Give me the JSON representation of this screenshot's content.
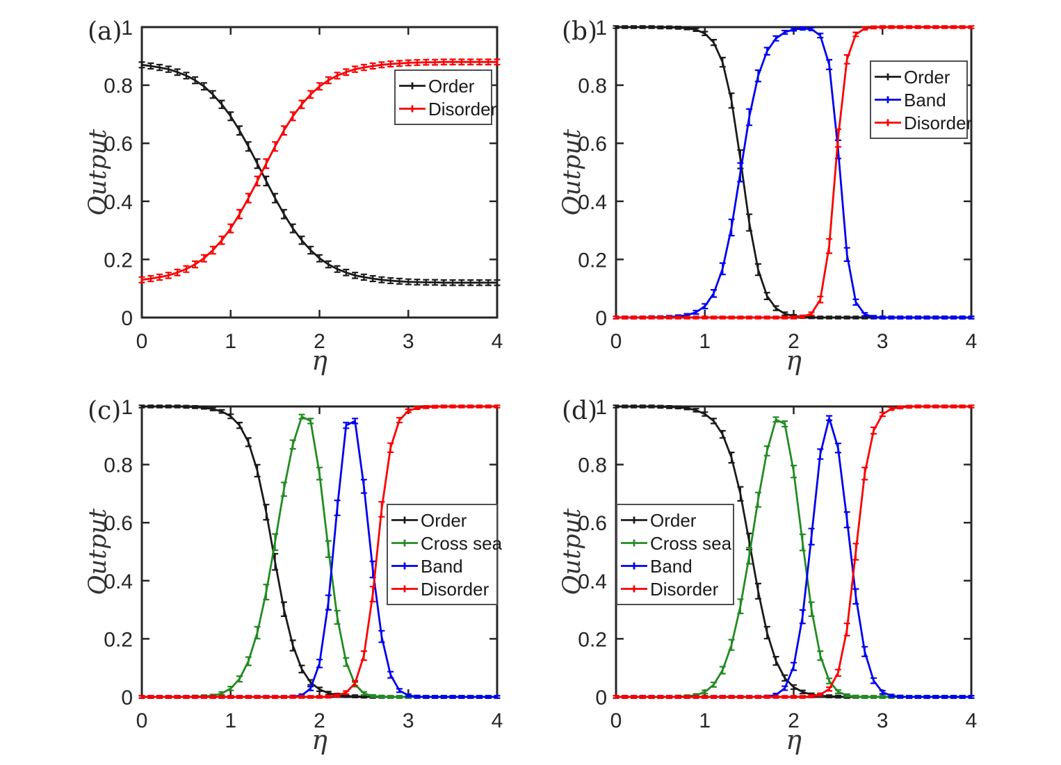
{
  "page": {
    "background": "#ffffff"
  },
  "chart_data": {
    "type": "line",
    "description": "2x2 grid of errorbar line plots: phase classification output vs noise eta",
    "shared": {
      "xlabel": "η",
      "ylabel": "Output",
      "xlim": [
        0,
        4
      ],
      "ylim": [
        0,
        1
      ],
      "xticks": [
        0,
        1,
        2,
        3,
        4
      ],
      "xtick_labels": [
        "0",
        "1",
        "2",
        "3",
        "4"
      ],
      "yticks": [
        0,
        0.2,
        0.4,
        0.6,
        0.8,
        1
      ],
      "ytick_labels": [
        "0",
        "0.2",
        "0.4",
        "0.6",
        "0.8",
        "1"
      ],
      "grid": false
    },
    "colors": {
      "order": "#1a1a1a",
      "cross_sea": "#228B22",
      "band": "#0000f0",
      "disorder": "#fa0000"
    },
    "panels": [
      {
        "id": "a",
        "panel_label": "(a)",
        "legend": {
          "position": "top-right",
          "items": [
            "Order",
            "Disorder"
          ]
        },
        "error_bar_halfwidth": {
          "min": 0.004,
          "max": 0.016
        },
        "x": [
          0,
          0.1,
          0.2,
          0.3,
          0.4,
          0.5,
          0.6,
          0.7,
          0.8,
          0.9,
          1,
          1.1,
          1.2,
          1.3,
          1.4,
          1.5,
          1.6,
          1.7,
          1.8,
          1.9,
          2,
          2.1,
          2.2,
          2.3,
          2.4,
          2.5,
          2.6,
          2.7,
          2.8,
          2.9,
          3,
          3.1,
          3.2,
          3.3,
          3.4,
          3.5,
          3.6,
          3.7,
          3.8,
          3.9,
          4
        ],
        "series": [
          {
            "name": "Order",
            "color": "#1a1a1a",
            "y": [
              0.87,
              0.866,
              0.861,
              0.855,
              0.845,
              0.833,
              0.817,
              0.796,
              0.768,
              0.734,
              0.693,
              0.644,
              0.589,
              0.53,
              0.47,
              0.411,
              0.356,
              0.307,
              0.266,
              0.232,
              0.204,
              0.183,
              0.167,
              0.155,
              0.145,
              0.139,
              0.134,
              0.13,
              0.127,
              0.125,
              0.123,
              0.122,
              0.121,
              0.121,
              0.12,
              0.12,
              0.12,
              0.12,
              0.12,
              0.12,
              0.12
            ]
          },
          {
            "name": "Disorder",
            "color": "#fa0000",
            "y": [
              0.13,
              0.134,
              0.139,
              0.145,
              0.155,
              0.167,
              0.183,
              0.204,
              0.232,
              0.266,
              0.307,
              0.356,
              0.411,
              0.47,
              0.53,
              0.589,
              0.644,
              0.693,
              0.734,
              0.768,
              0.796,
              0.817,
              0.833,
              0.845,
              0.855,
              0.861,
              0.866,
              0.87,
              0.873,
              0.875,
              0.877,
              0.878,
              0.879,
              0.879,
              0.88,
              0.88,
              0.88,
              0.88,
              0.88,
              0.88,
              0.88
            ]
          }
        ]
      },
      {
        "id": "b",
        "panel_label": "(b)",
        "legend": {
          "position": "top-right",
          "items": [
            "Order",
            "Band",
            "Disorder"
          ]
        },
        "error_bar_halfwidth": {
          "min": 0.004,
          "max": 0.032
        },
        "x": [
          0,
          0.1,
          0.2,
          0.3,
          0.4,
          0.5,
          0.6,
          0.7,
          0.8,
          0.9,
          1,
          1.1,
          1.2,
          1.3,
          1.4,
          1.5,
          1.6,
          1.7,
          1.8,
          1.9,
          2,
          2.1,
          2.2,
          2.3,
          2.4,
          2.5,
          2.6,
          2.7,
          2.8,
          2.9,
          3,
          3.1,
          3.2,
          3.3,
          3.4,
          3.5,
          3.6,
          3.7,
          3.8,
          3.9,
          4
        ],
        "series": [
          {
            "name": "Order",
            "color": "#1a1a1a",
            "y": [
              1,
              1,
              1,
              1,
              1,
              0.999,
              0.999,
              0.998,
              0.996,
              0.991,
              0.978,
              0.947,
              0.879,
              0.747,
              0.545,
              0.327,
              0.165,
              0.074,
              0.032,
              0.013,
              0.005,
              0.002,
              0.001,
              0,
              0,
              0,
              0,
              0,
              0,
              0,
              0,
              0,
              0,
              0,
              0,
              0,
              0,
              0,
              0,
              0,
              0
            ]
          },
          {
            "name": "Band",
            "color": "#0000f0",
            "y": [
              0,
              0,
              0,
              0,
              0.001,
              0.001,
              0.002,
              0.004,
              0.008,
              0.018,
              0.039,
              0.083,
              0.168,
              0.31,
              0.5,
              0.69,
              0.832,
              0.917,
              0.961,
              0.982,
              0.992,
              0.995,
              0.993,
              0.971,
              0.871,
              0.579,
              0.217,
              0.053,
              0.011,
              0.002,
              0,
              0,
              0,
              0,
              0,
              0,
              0,
              0,
              0,
              0,
              0
            ]
          },
          {
            "name": "Disorder",
            "color": "#fa0000",
            "y": [
              0,
              0,
              0,
              0,
              0,
              0,
              0,
              0,
              0,
              0,
              0,
              0,
              0,
              0,
              0,
              0,
              0,
              0,
              0,
              0,
              0,
              0.003,
              0.013,
              0.062,
              0.246,
              0.618,
              0.889,
              0.975,
              0.995,
              0.999,
              1,
              1,
              1,
              1,
              1,
              1,
              1,
              1,
              1,
              1,
              1
            ]
          }
        ]
      },
      {
        "id": "c",
        "panel_label": "(c)",
        "legend": {
          "position": "middle-right",
          "items": [
            "Order",
            "Cross sea",
            "Band",
            "Disorder"
          ]
        },
        "error_bar_halfwidth": {
          "min": 0.004,
          "max": 0.028
        },
        "x": [
          0,
          0.1,
          0.2,
          0.3,
          0.4,
          0.5,
          0.6,
          0.7,
          0.8,
          0.9,
          1,
          1.1,
          1.2,
          1.3,
          1.4,
          1.5,
          1.6,
          1.7,
          1.8,
          1.9,
          2,
          2.1,
          2.2,
          2.3,
          2.4,
          2.5,
          2.6,
          2.7,
          2.8,
          2.9,
          3,
          3.1,
          3.2,
          3.3,
          3.4,
          3.5,
          3.6,
          3.7,
          3.8,
          3.9,
          4
        ],
        "series": [
          {
            "name": "Order",
            "color": "#1a1a1a",
            "y": [
              1,
              1,
              1,
              1,
              1,
              0.999,
              0.998,
              0.996,
              0.991,
              0.983,
              0.966,
              0.935,
              0.877,
              0.779,
              0.636,
              0.465,
              0.302,
              0.177,
              0.096,
              0.05,
              0.026,
              0.013,
              0.007,
              0.003,
              0.002,
              0.001,
              0,
              0,
              0,
              0,
              0,
              0,
              0,
              0,
              0,
              0,
              0,
              0,
              0,
              0,
              0
            ]
          },
          {
            "name": "Cross sea",
            "color": "#228B22",
            "y": [
              0,
              0,
              0,
              0,
              0,
              0,
              0.001,
              0.002,
              0.004,
              0.012,
              0.029,
              0.062,
              0.123,
              0.221,
              0.361,
              0.533,
              0.715,
              0.869,
              0.965,
              0.95,
              0.769,
              0.509,
              0.274,
              0.12,
              0.043,
              0.012,
              0.003,
              0.001,
              0,
              0,
              0,
              0,
              0,
              0,
              0,
              0,
              0,
              0,
              0,
              0,
              0
            ]
          },
          {
            "name": "Band",
            "color": "#0000f0",
            "y": [
              0,
              0,
              0,
              0,
              0,
              0,
              0,
              0,
              0,
              0,
              0,
              0,
              0,
              0,
              0,
              0,
              0,
              0.001,
              0.005,
              0.029,
              0.115,
              0.325,
              0.651,
              0.935,
              0.95,
              0.725,
              0.439,
              0.208,
              0.076,
              0.022,
              0.005,
              0.001,
              0,
              0,
              0,
              0,
              0,
              0,
              0,
              0,
              0
            ]
          },
          {
            "name": "Disorder",
            "color": "#fa0000",
            "y": [
              0,
              0,
              0,
              0,
              0,
              0,
              0,
              0,
              0,
              0,
              0,
              0,
              0,
              0,
              0,
              0,
              0,
              0,
              0,
              0,
              0,
              0.001,
              0.005,
              0.015,
              0.047,
              0.142,
              0.354,
              0.646,
              0.858,
              0.953,
              0.985,
              0.995,
              0.998,
              0.999,
              1,
              1,
              1,
              1,
              1,
              1,
              1
            ]
          }
        ]
      },
      {
        "id": "d",
        "panel_label": "(d)",
        "legend": {
          "position": "middle-left",
          "items": [
            "Order",
            "Cross sea",
            "Band",
            "Disorder"
          ]
        },
        "error_bar_halfwidth": {
          "min": 0.004,
          "max": 0.028
        },
        "x": [
          0,
          0.1,
          0.2,
          0.3,
          0.4,
          0.5,
          0.6,
          0.7,
          0.8,
          0.9,
          1,
          1.1,
          1.2,
          1.3,
          1.4,
          1.5,
          1.6,
          1.7,
          1.8,
          1.9,
          2,
          2.1,
          2.2,
          2.3,
          2.4,
          2.5,
          2.6,
          2.7,
          2.8,
          2.9,
          3,
          3.1,
          3.2,
          3.3,
          3.4,
          3.5,
          3.6,
          3.7,
          3.8,
          3.9,
          4
        ],
        "series": [
          {
            "name": "Order",
            "color": "#1a1a1a",
            "y": [
              1,
              1,
              1,
              1,
              1,
              0.999,
              0.998,
              0.997,
              0.994,
              0.987,
              0.974,
              0.95,
              0.904,
              0.824,
              0.699,
              0.535,
              0.364,
              0.221,
              0.124,
              0.065,
              0.034,
              0.017,
              0.008,
              0.004,
              0.002,
              0.001,
              0,
              0,
              0,
              0,
              0,
              0,
              0,
              0,
              0,
              0,
              0,
              0,
              0,
              0,
              0
            ]
          },
          {
            "name": "Cross sea",
            "color": "#228B22",
            "y": [
              0,
              0,
              0,
              0,
              0,
              0,
              0,
              0.001,
              0.002,
              0.006,
              0.017,
              0.042,
              0.092,
              0.179,
              0.312,
              0.486,
              0.679,
              0.847,
              0.955,
              0.94,
              0.776,
              0.532,
              0.302,
              0.142,
              0.055,
              0.018,
              0.005,
              0.001,
              0,
              0,
              0,
              0,
              0,
              0,
              0,
              0,
              0,
              0,
              0,
              0,
              0
            ]
          },
          {
            "name": "Band",
            "color": "#0000f0",
            "y": [
              0,
              0,
              0,
              0,
              0,
              0,
              0,
              0,
              0,
              0,
              0,
              0,
              0,
              0,
              0,
              0,
              0,
              0.001,
              0.007,
              0.03,
              0.105,
              0.276,
              0.552,
              0.836,
              0.96,
              0.857,
              0.61,
              0.346,
              0.156,
              0.056,
              0.016,
              0.004,
              0.001,
              0,
              0,
              0,
              0,
              0,
              0,
              0,
              0
            ]
          },
          {
            "name": "Disorder",
            "color": "#fa0000",
            "y": [
              0,
              0,
              0,
              0,
              0,
              0,
              0,
              0,
              0,
              0,
              0,
              0,
              0,
              0,
              0,
              0,
              0,
              0,
              0,
              0,
              0,
              0,
              0.002,
              0.008,
              0.027,
              0.083,
              0.232,
              0.5,
              0.769,
              0.917,
              0.973,
              0.992,
              0.997,
              0.999,
              1,
              1,
              1,
              1,
              1,
              1,
              1
            ]
          }
        ]
      }
    ]
  }
}
